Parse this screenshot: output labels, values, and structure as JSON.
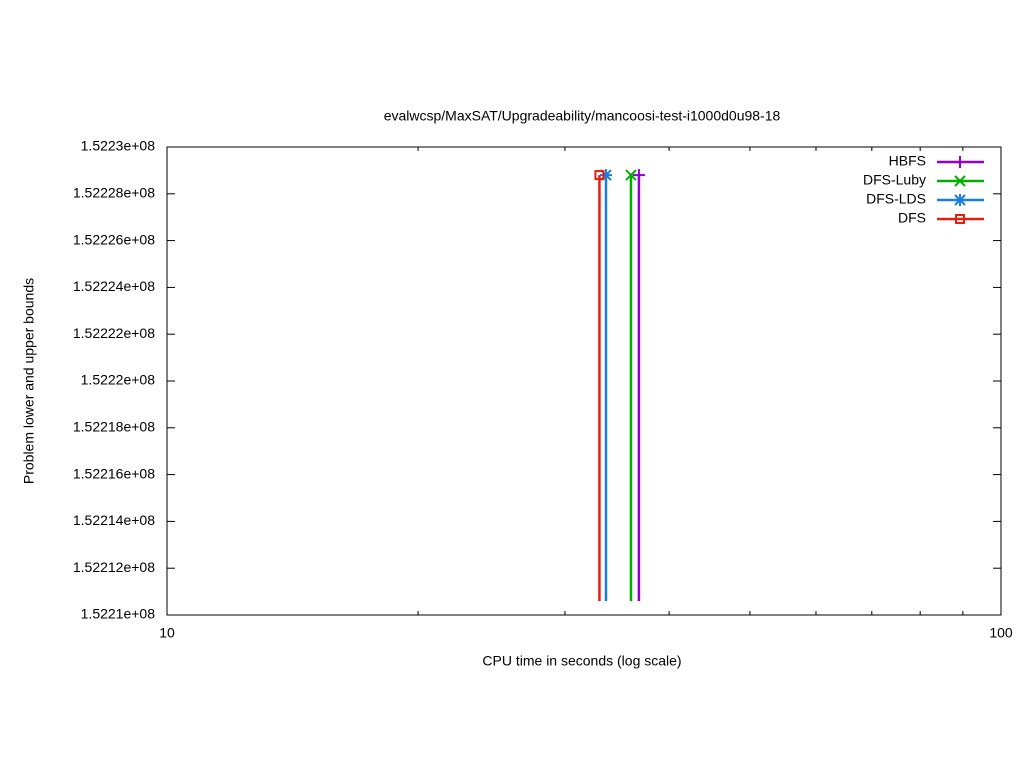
{
  "chart_data": {
    "type": "step",
    "title": "evalwcsp/MaxSAT/Upgradeability/mancoosi-test-i1000d0u98-18",
    "x_label": "CPU time in seconds (log scale)",
    "y_label": "Problem lower and upper bounds",
    "xscale": "log",
    "xlim": [
      10,
      100
    ],
    "xticks": [
      10,
      100
    ],
    "ylim": [
      152210000,
      152230000
    ],
    "yticks": [
      {
        "value": 152210000,
        "label": "1.5221e+08"
      },
      {
        "value": 152212000,
        "label": "1.52212e+08"
      },
      {
        "value": 152214000,
        "label": "1.52214e+08"
      },
      {
        "value": 152216000,
        "label": "1.52216e+08"
      },
      {
        "value": 152218000,
        "label": "1.52218e+08"
      },
      {
        "value": 152220000,
        "label": "1.5222e+08"
      },
      {
        "value": 152222000,
        "label": "1.52222e+08"
      },
      {
        "value": 152224000,
        "label": "1.52224e+08"
      },
      {
        "value": 152226000,
        "label": "1.52226e+08"
      },
      {
        "value": 152228000,
        "label": "1.52228e+08"
      },
      {
        "value": 152230000,
        "label": "1.5223e+08"
      }
    ],
    "legend": "top-right",
    "series": [
      {
        "name": "HBFS",
        "color": "#9400d3",
        "marker": "plus",
        "x": [
          36.8,
          36.8
        ],
        "values": [
          152210600,
          152228800
        ]
      },
      {
        "name": "DFS-Luby",
        "color": "#00b000",
        "marker": "cross",
        "x": [
          36.0,
          36.0
        ],
        "values": [
          152210600,
          152228800
        ]
      },
      {
        "name": "DFS-LDS",
        "color": "#1a7ee0",
        "marker": "star",
        "x": [
          33.6,
          33.6
        ],
        "values": [
          152210600,
          152228800
        ]
      },
      {
        "name": "DFS",
        "color": "#e51e10",
        "marker": "square",
        "x": [
          33.0,
          33.0
        ],
        "values": [
          152210600,
          152228800
        ]
      }
    ]
  }
}
